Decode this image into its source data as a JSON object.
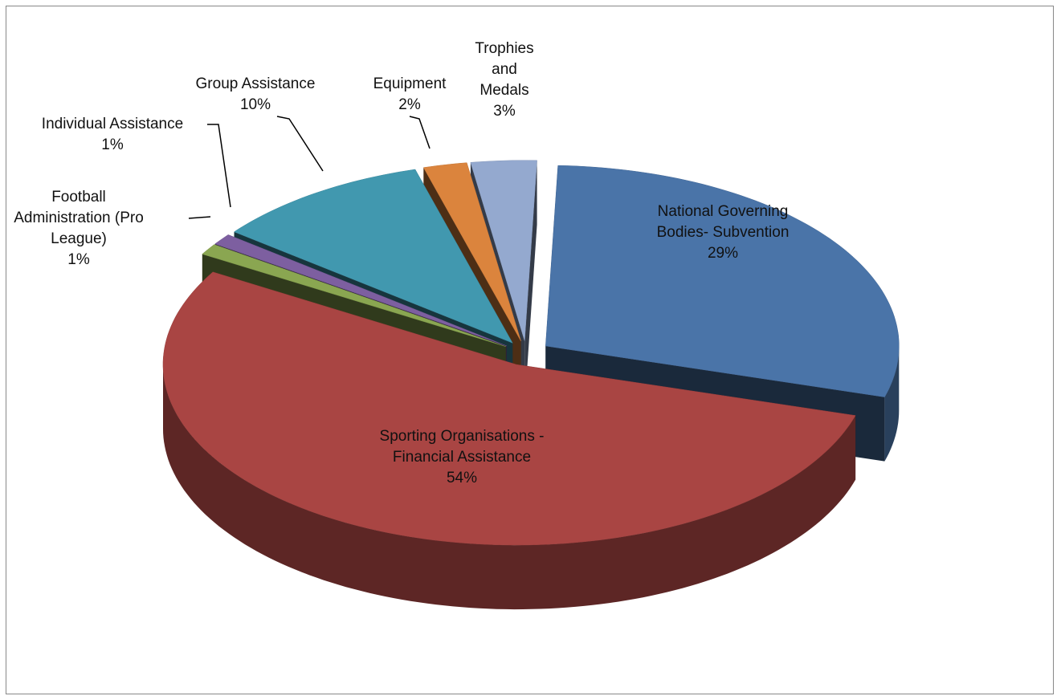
{
  "chart_data": {
    "type": "pie",
    "categories": [
      "National Governing Bodies- Subvention",
      "Sporting Organisations - Financial Assistance",
      "Football Administration (Pro League)",
      "Individual Assistance",
      "Group Assistance",
      "Equipment",
      "Trophies and Medals"
    ],
    "values": [
      29,
      54,
      1,
      1,
      10,
      2,
      3
    ],
    "value_labels": [
      "29%",
      "54%",
      "1%",
      "1%",
      "10%",
      "2%",
      "3%"
    ],
    "colors": [
      "#4a74a8",
      "#a94543",
      "#8aa651",
      "#7d5fa0",
      "#4198af",
      "#db843d",
      "#94a9cf"
    ],
    "three_d": true
  }
}
